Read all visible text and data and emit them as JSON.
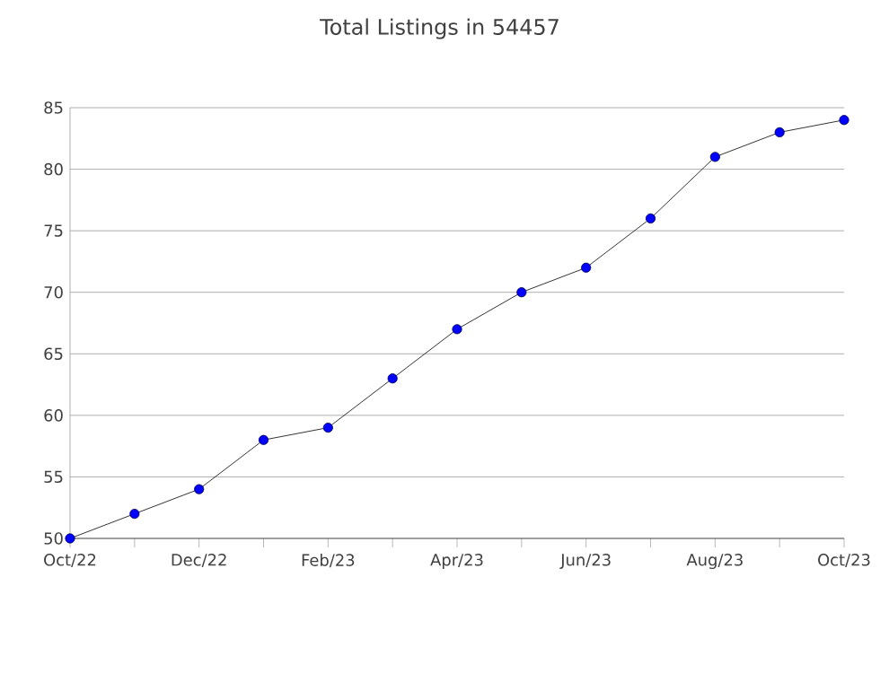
{
  "chart_data": {
    "type": "line",
    "title": "Total Listings in 54457",
    "categories": [
      "Oct/22",
      null,
      "Dec/22",
      null,
      "Feb/23",
      null,
      "Apr/23",
      null,
      "Jun/23",
      null,
      "Aug/23",
      null,
      "Oct/23"
    ],
    "series": [
      {
        "color": "#0000ff",
        "values": [
          50,
          52,
          54,
          58,
          59,
          63,
          67,
          70,
          72,
          76,
          81,
          83,
          84
        ]
      }
    ],
    "ylim": [
      50,
      85
    ],
    "yticks": [
      50,
      55,
      60,
      65,
      70,
      75,
      80,
      85
    ],
    "grid": "y",
    "marker": "circle",
    "line_style": "solid"
  }
}
